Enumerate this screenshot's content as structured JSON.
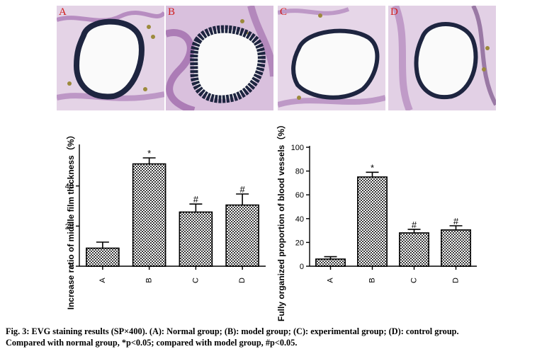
{
  "panels": [
    {
      "letter": "A"
    },
    {
      "letter": "B"
    },
    {
      "letter": "C"
    },
    {
      "letter": "D"
    }
  ],
  "colors": {
    "tissue_bg": "#e4d3e6",
    "stain_purple": "#a46fb0",
    "elastic_dark": "#1e2540",
    "lumen": "#fafafa",
    "label_red": "#d01c1c",
    "bar_fill": "#e6e6e6",
    "axis": "#000000"
  },
  "chart_data": [
    {
      "type": "bar",
      "categories": [
        "A",
        "B",
        "C",
        "D"
      ],
      "values": [
        9,
        51,
        27,
        30.5
      ],
      "errors": [
        3,
        3,
        4,
        5.5
      ],
      "markers": [
        "",
        "*",
        "#",
        "#"
      ],
      "ylabel": "Increase ratio of middle film thickness（%）",
      "ylim": [
        0,
        60
      ],
      "yticks": [
        0,
        20,
        40
      ],
      "grid": false
    },
    {
      "type": "bar",
      "categories": [
        "A",
        "B",
        "C",
        "D"
      ],
      "values": [
        6,
        75,
        28,
        30.5
      ],
      "errors": [
        2,
        4,
        3,
        3.5
      ],
      "markers": [
        "",
        "*",
        "#",
        "#"
      ],
      "ylabel": "Fully organized proportion of blood vessels（%）",
      "ylim": [
        0,
        100
      ],
      "yticks": [
        0,
        20,
        40,
        60,
        80,
        100
      ],
      "grid": false
    }
  ],
  "caption": {
    "line1": "Fig. 3: EVG staining results (SP×400). (A): Normal group; (B): model group; (C): experimental group; (D): control group.",
    "line2": "Compared with normal group, *p<0.05; compared with model group, #p<0.05."
  }
}
